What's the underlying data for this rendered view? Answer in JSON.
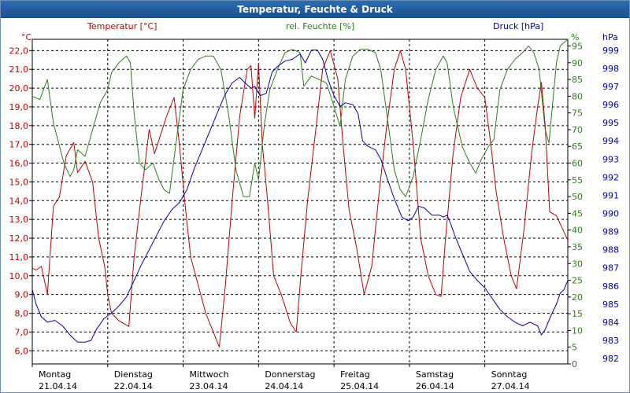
{
  "window": {
    "title": "Temperatur, Feuchte & Druck"
  },
  "chart_data": {
    "type": "line",
    "title": "Temperatur, Feuchte & Druck",
    "x_days": [
      {
        "day": "Montag",
        "date": "21.04.14"
      },
      {
        "day": "Dienstag",
        "date": "22.04.14"
      },
      {
        "day": "Mittwoch",
        "date": "23.04.14"
      },
      {
        "day": "Donnerstag",
        "date": "24.04.14"
      },
      {
        "day": "Freitag",
        "date": "25.04.14"
      },
      {
        "day": "Samstag",
        "date": "26.04.14"
      },
      {
        "day": "Sonntag",
        "date": "27.04.14"
      }
    ],
    "xlim": [
      0,
      7.1
    ],
    "axes": {
      "temperature": {
        "label": "Temperatur [°C]",
        "unit": "°C",
        "ylim": [
          5.3,
          22.6
        ],
        "ticks": [
          6.0,
          7.0,
          8.0,
          9.0,
          10.0,
          11.0,
          12.0,
          13.0,
          14.0,
          15.0,
          16.0,
          17.0,
          18.0,
          19.0,
          20.0,
          21.0,
          22.0
        ],
        "color": "#c00000"
      },
      "humidity": {
        "label": "rel. Feuchte [%]",
        "unit": "%",
        "ylim": [
          0,
          97
        ],
        "ticks": [
          0,
          5,
          10,
          15,
          20,
          25,
          30,
          35,
          40,
          45,
          50,
          55,
          60,
          65,
          70,
          75,
          80,
          85,
          90,
          95
        ],
        "color": "#2e7d1e"
      },
      "pressure": {
        "label": "Druck [hPa]",
        "unit": "hPa",
        "ylim": [
          981.7,
          999.6
        ],
        "ticks": [
          982,
          983,
          984,
          985,
          986,
          987,
          988,
          989,
          990,
          991,
          992,
          993,
          994,
          995,
          996,
          997,
          998,
          999
        ],
        "color": "#0000b0"
      }
    },
    "series": [
      {
        "name": "Temperatur",
        "axis": "temperature",
        "points": [
          [
            0,
            10.4
          ],
          [
            0.05,
            10.3
          ],
          [
            0.12,
            10.5
          ],
          [
            0.2,
            9.0
          ],
          [
            0.28,
            13.7
          ],
          [
            0.36,
            14.2
          ],
          [
            0.45,
            16.4
          ],
          [
            0.55,
            17.1
          ],
          [
            0.6,
            15.5
          ],
          [
            0.7,
            16.1
          ],
          [
            0.8,
            15.0
          ],
          [
            0.88,
            12.0
          ],
          [
            0.96,
            10.5
          ],
          [
            1.0,
            9.0
          ],
          [
            1.05,
            8.0
          ],
          [
            1.15,
            7.6
          ],
          [
            1.28,
            7.3
          ],
          [
            1.35,
            11.0
          ],
          [
            1.45,
            14.5
          ],
          [
            1.55,
            17.8
          ],
          [
            1.62,
            16.5
          ],
          [
            1.7,
            17.5
          ],
          [
            1.78,
            18.5
          ],
          [
            1.88,
            19.5
          ],
          [
            1.95,
            17.0
          ],
          [
            2.02,
            14.0
          ],
          [
            2.1,
            11.0
          ],
          [
            2.2,
            9.5
          ],
          [
            2.3,
            8.0
          ],
          [
            2.4,
            7.0
          ],
          [
            2.48,
            6.2
          ],
          [
            2.56,
            9.5
          ],
          [
            2.65,
            14.0
          ],
          [
            2.75,
            18.5
          ],
          [
            2.85,
            21.0
          ],
          [
            2.9,
            21.2
          ],
          [
            2.95,
            18.4
          ],
          [
            3.0,
            21.3
          ],
          [
            3.05,
            17.0
          ],
          [
            3.12,
            14.0
          ],
          [
            3.2,
            10.0
          ],
          [
            3.3,
            9.0
          ],
          [
            3.42,
            7.5
          ],
          [
            3.5,
            7.0
          ],
          [
            3.56,
            10.0
          ],
          [
            3.65,
            14.0
          ],
          [
            3.75,
            17.5
          ],
          [
            3.85,
            21.0
          ],
          [
            3.95,
            22.0
          ],
          [
            4.05,
            20.5
          ],
          [
            4.12,
            17.0
          ],
          [
            4.2,
            13.5
          ],
          [
            4.3,
            11.5
          ],
          [
            4.4,
            9.0
          ],
          [
            4.5,
            10.5
          ],
          [
            4.6,
            14.5
          ],
          [
            4.7,
            18.0
          ],
          [
            4.8,
            21.0
          ],
          [
            4.88,
            22.0
          ],
          [
            4.95,
            21.0
          ],
          [
            5.05,
            17.0
          ],
          [
            5.15,
            12.0
          ],
          [
            5.25,
            10.0
          ],
          [
            5.35,
            9.0
          ],
          [
            5.42,
            8.9
          ],
          [
            5.48,
            12.0
          ],
          [
            5.58,
            16.5
          ],
          [
            5.68,
            19.5
          ],
          [
            5.8,
            21.0
          ],
          [
            5.9,
            20.0
          ],
          [
            6.0,
            19.5
          ],
          [
            6.08,
            17.0
          ],
          [
            6.15,
            14.5
          ],
          [
            6.25,
            12.0
          ],
          [
            6.35,
            10.0
          ],
          [
            6.42,
            9.3
          ],
          [
            6.52,
            12.5
          ],
          [
            6.62,
            16.5
          ],
          [
            6.7,
            19.0
          ],
          [
            6.75,
            20.3
          ],
          [
            6.8,
            18.0
          ],
          [
            6.86,
            13.4
          ],
          [
            6.95,
            13.2
          ],
          [
            7.03,
            12.5
          ],
          [
            7.1,
            11.9
          ]
        ]
      },
      {
        "name": "rel. Feuchte",
        "axis": "humidity",
        "points": [
          [
            0,
            80
          ],
          [
            0.1,
            79
          ],
          [
            0.2,
            85
          ],
          [
            0.28,
            72
          ],
          [
            0.35,
            66
          ],
          [
            0.42,
            60
          ],
          [
            0.5,
            56
          ],
          [
            0.55,
            58
          ],
          [
            0.6,
            64
          ],
          [
            0.7,
            62
          ],
          [
            0.8,
            70
          ],
          [
            0.9,
            78
          ],
          [
            1.0,
            82
          ],
          [
            1.05,
            87
          ],
          [
            1.15,
            90
          ],
          [
            1.25,
            92
          ],
          [
            1.3,
            90
          ],
          [
            1.35,
            75
          ],
          [
            1.42,
            60
          ],
          [
            1.5,
            58
          ],
          [
            1.6,
            60
          ],
          [
            1.68,
            55
          ],
          [
            1.75,
            52
          ],
          [
            1.82,
            51
          ],
          [
            1.9,
            65
          ],
          [
            2.0,
            82
          ],
          [
            2.1,
            88
          ],
          [
            2.2,
            91
          ],
          [
            2.3,
            92
          ],
          [
            2.4,
            92
          ],
          [
            2.5,
            88
          ],
          [
            2.6,
            75
          ],
          [
            2.7,
            58
          ],
          [
            2.8,
            50
          ],
          [
            2.88,
            50
          ],
          [
            2.95,
            60
          ],
          [
            3.0,
            55
          ],
          [
            3.08,
            72
          ],
          [
            3.15,
            82
          ],
          [
            3.25,
            88
          ],
          [
            3.35,
            93
          ],
          [
            3.45,
            94
          ],
          [
            3.55,
            93
          ],
          [
            3.6,
            83
          ],
          [
            3.7,
            86
          ],
          [
            3.8,
            85
          ],
          [
            3.9,
            84
          ],
          [
            4.0,
            77
          ],
          [
            4.08,
            71
          ],
          [
            4.15,
            85
          ],
          [
            4.25,
            92
          ],
          [
            4.35,
            94
          ],
          [
            4.45,
            94
          ],
          [
            4.55,
            93
          ],
          [
            4.62,
            88
          ],
          [
            4.7,
            75
          ],
          [
            4.8,
            58
          ],
          [
            4.88,
            52
          ],
          [
            4.95,
            50
          ],
          [
            5.05,
            56
          ],
          [
            5.15,
            67
          ],
          [
            5.25,
            79
          ],
          [
            5.35,
            88
          ],
          [
            5.45,
            92
          ],
          [
            5.5,
            90
          ],
          [
            5.58,
            77
          ],
          [
            5.7,
            65
          ],
          [
            5.8,
            60
          ],
          [
            5.88,
            57
          ],
          [
            5.95,
            61
          ],
          [
            6.05,
            65
          ],
          [
            6.12,
            67
          ],
          [
            6.2,
            82
          ],
          [
            6.3,
            88
          ],
          [
            6.4,
            91
          ],
          [
            6.5,
            93
          ],
          [
            6.58,
            95
          ],
          [
            6.65,
            93
          ],
          [
            6.72,
            88
          ],
          [
            6.8,
            70
          ],
          [
            6.85,
            66
          ],
          [
            6.9,
            78
          ],
          [
            6.95,
            90
          ],
          [
            7.0,
            95
          ],
          [
            7.1,
            97
          ]
        ]
      },
      {
        "name": "Druck",
        "axis": "pressure",
        "points": [
          [
            0,
            985.8
          ],
          [
            0.05,
            985.0
          ],
          [
            0.12,
            984.3
          ],
          [
            0.2,
            984.0
          ],
          [
            0.3,
            984.1
          ],
          [
            0.4,
            983.8
          ],
          [
            0.5,
            983.3
          ],
          [
            0.6,
            982.9
          ],
          [
            0.7,
            982.9
          ],
          [
            0.78,
            983.0
          ],
          [
            0.85,
            983.6
          ],
          [
            0.95,
            984.2
          ],
          [
            1.05,
            984.5
          ],
          [
            1.15,
            984.9
          ],
          [
            1.25,
            985.4
          ],
          [
            1.35,
            986.3
          ],
          [
            1.45,
            987.2
          ],
          [
            1.55,
            988.0
          ],
          [
            1.65,
            988.8
          ],
          [
            1.75,
            989.6
          ],
          [
            1.85,
            990.2
          ],
          [
            1.95,
            990.6
          ],
          [
            2.05,
            991.3
          ],
          [
            2.15,
            992.5
          ],
          [
            2.25,
            993.5
          ],
          [
            2.35,
            994.5
          ],
          [
            2.45,
            995.5
          ],
          [
            2.55,
            996.5
          ],
          [
            2.65,
            997.2
          ],
          [
            2.75,
            997.5
          ],
          [
            2.82,
            997.2
          ],
          [
            2.9,
            996.9
          ],
          [
            2.95,
            997.0
          ],
          [
            3.02,
            996.5
          ],
          [
            3.1,
            996.6
          ],
          [
            3.18,
            997.8
          ],
          [
            3.25,
            998.1
          ],
          [
            3.35,
            998.4
          ],
          [
            3.45,
            998.5
          ],
          [
            3.55,
            998.8
          ],
          [
            3.62,
            998.3
          ],
          [
            3.7,
            999.0
          ],
          [
            3.78,
            999.0
          ],
          [
            3.85,
            998.5
          ],
          [
            3.92,
            997.4
          ],
          [
            4.0,
            996.5
          ],
          [
            4.08,
            995.9
          ],
          [
            4.15,
            996.1
          ],
          [
            4.25,
            996.0
          ],
          [
            4.32,
            995.5
          ],
          [
            4.38,
            994.0
          ],
          [
            4.45,
            993.7
          ],
          [
            4.55,
            993.5
          ],
          [
            4.62,
            993.0
          ],
          [
            4.7,
            992.0
          ],
          [
            4.8,
            990.8
          ],
          [
            4.9,
            989.8
          ],
          [
            4.98,
            989.6
          ],
          [
            5.05,
            989.8
          ],
          [
            5.12,
            990.4
          ],
          [
            5.2,
            990.3
          ],
          [
            5.3,
            989.9
          ],
          [
            5.4,
            989.9
          ],
          [
            5.45,
            989.8
          ],
          [
            5.5,
            989.9
          ],
          [
            5.55,
            989.4
          ],
          [
            5.6,
            988.8
          ],
          [
            5.7,
            987.8
          ],
          [
            5.8,
            986.8
          ],
          [
            5.9,
            986.3
          ],
          [
            6.0,
            985.9
          ],
          [
            6.1,
            985.3
          ],
          [
            6.2,
            984.7
          ],
          [
            6.3,
            984.3
          ],
          [
            6.4,
            984.0
          ],
          [
            6.5,
            983.8
          ],
          [
            6.6,
            984.0
          ],
          [
            6.7,
            983.8
          ],
          [
            6.75,
            983.3
          ],
          [
            6.8,
            983.6
          ],
          [
            6.87,
            984.3
          ],
          [
            6.95,
            985.0
          ],
          [
            7.0,
            985.6
          ],
          [
            7.05,
            985.8
          ],
          [
            7.1,
            986.3
          ]
        ]
      }
    ]
  }
}
